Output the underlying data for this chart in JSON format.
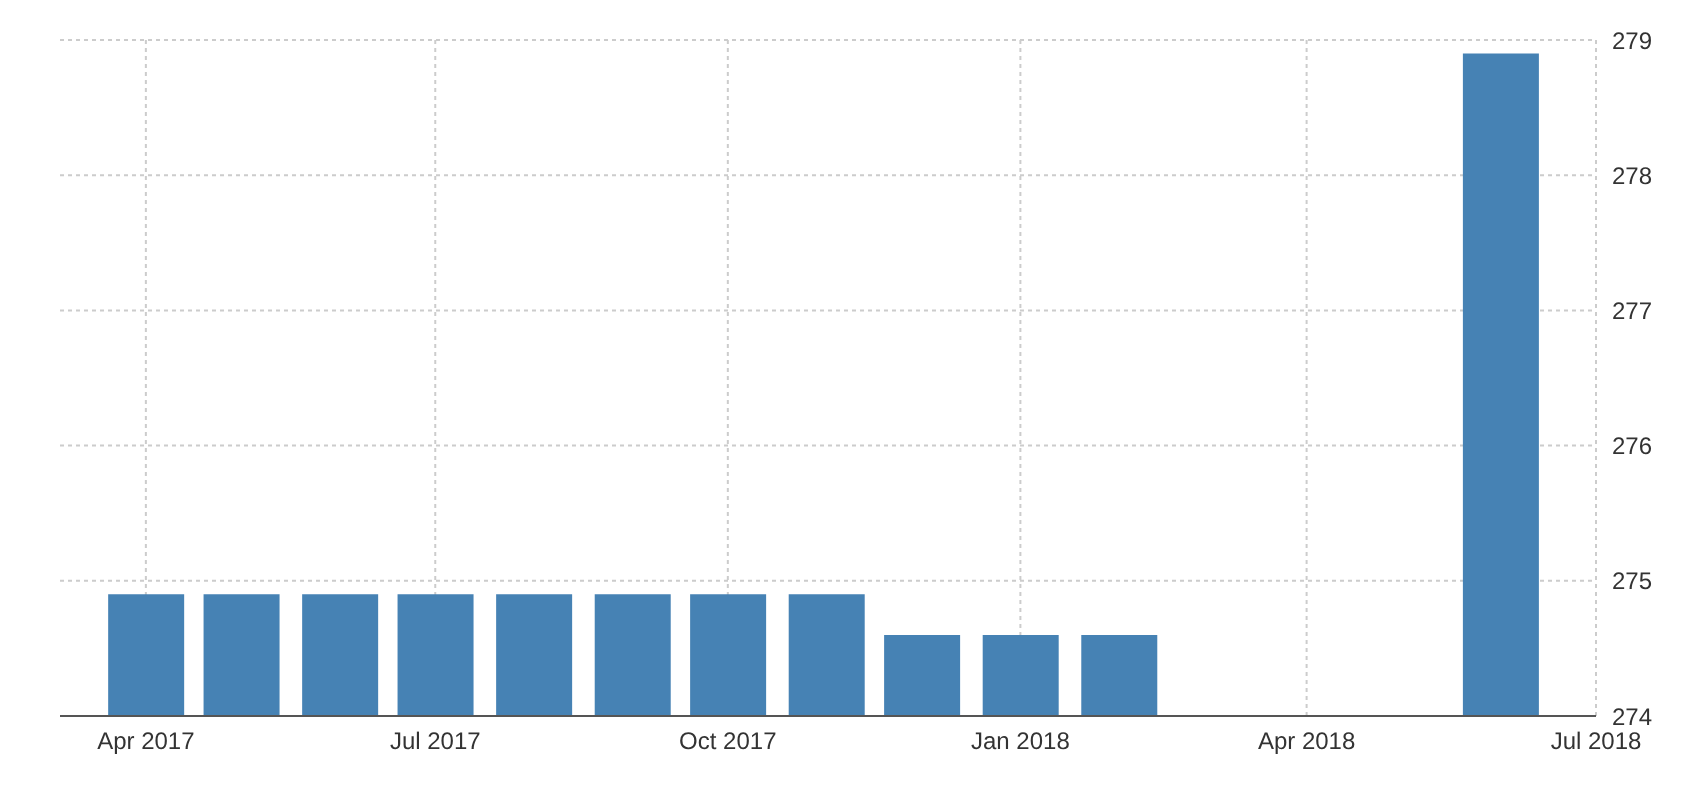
{
  "chart_data": {
    "type": "bar",
    "x": [
      "2017-04",
      "2017-05",
      "2017-06",
      "2017-07",
      "2017-08",
      "2017-09",
      "2017-10",
      "2017-11",
      "2017-12",
      "2018-01",
      "2018-02",
      "2018-06"
    ],
    "values": [
      274.9,
      274.9,
      274.9,
      274.9,
      274.9,
      274.9,
      274.9,
      274.9,
      274.6,
      274.6,
      274.6,
      278.9
    ],
    "color": "#4682b4",
    "xlim": [
      "2017-03-05",
      "2018-07-01"
    ],
    "xticks": [
      {
        "value": "2017-04",
        "label": "Apr 2017"
      },
      {
        "value": "2017-07",
        "label": "Jul 2017"
      },
      {
        "value": "2017-10",
        "label": "Oct 2017"
      },
      {
        "value": "2018-01",
        "label": "Jan 2018"
      },
      {
        "value": "2018-04",
        "label": "Apr 2018"
      },
      {
        "value": "2018-07",
        "label": "Jul 2018"
      }
    ],
    "ylim": [
      274,
      279
    ],
    "yticks": [
      274,
      275,
      276,
      277,
      278,
      279
    ],
    "grid": true
  }
}
